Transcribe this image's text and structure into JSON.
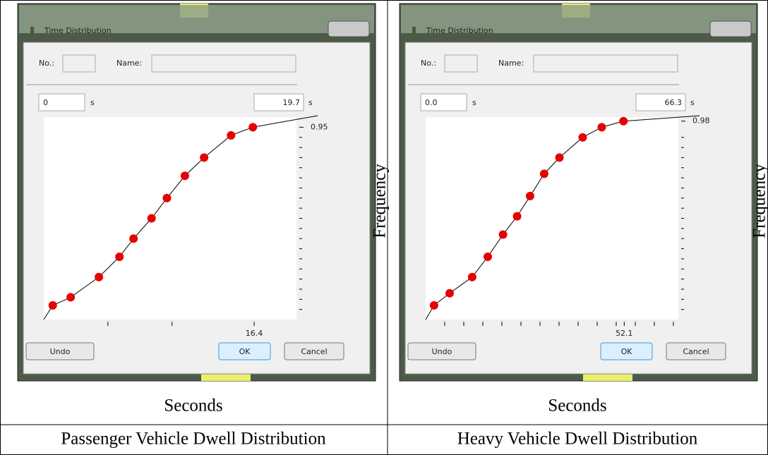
{
  "panels": [
    {
      "dialog": {
        "title": "Time Distribution",
        "no_label": "No.:",
        "name_label": "Name:",
        "min_field": "0",
        "min_unit": "s",
        "max_field": "19.7",
        "max_unit": "s",
        "buttons": [
          "Undo",
          "OK",
          "Cancel"
        ]
      },
      "chart_data": {
        "type": "line",
        "x": [
          0.7,
          2.1,
          4.3,
          5.9,
          7.0,
          8.4,
          9.6,
          11.0,
          12.5,
          14.6,
          16.3
        ],
        "values": [
          0.07,
          0.11,
          0.21,
          0.31,
          0.4,
          0.5,
          0.6,
          0.71,
          0.8,
          0.91,
          0.95
        ],
        "xlim": [
          0,
          19.7
        ],
        "ylim": [
          0,
          1
        ],
        "xticks": [
          {
            "value": 16.4,
            "label": "16.4"
          }
        ],
        "yticks": [
          0.95
        ],
        "minor_xticks": [
          5,
          10
        ],
        "minor_yticks": [
          0.05,
          0.1,
          0.15,
          0.2,
          0.25,
          0.3,
          0.35,
          0.4,
          0.45,
          0.5,
          0.55,
          0.6,
          0.65,
          0.7,
          0.75,
          0.8,
          0.85,
          0.9
        ],
        "color": "#000000",
        "marker_color": "#e60000",
        "xlabel": "Seconds",
        "ylabel": "Frequency"
      },
      "caption": "Passenger Vehicle Dwell Distribution"
    },
    {
      "dialog": {
        "title": "Time Distribution",
        "no_label": "No.:",
        "name_label": "Name:",
        "min_field": "0.0",
        "min_unit": "s",
        "max_field": "66.3",
        "max_unit": "s",
        "buttons": [
          "Undo",
          "OK",
          "Cancel"
        ]
      },
      "chart_data": {
        "type": "line",
        "x": [
          2.2,
          6.3,
          12.2,
          16.3,
          20.3,
          24.0,
          27.4,
          31.1,
          35.1,
          41.2,
          46.2,
          51.9
        ],
        "values": [
          0.07,
          0.13,
          0.21,
          0.31,
          0.42,
          0.51,
          0.61,
          0.72,
          0.8,
          0.9,
          0.95,
          0.98
        ],
        "xlim": [
          0,
          66.3
        ],
        "ylim": [
          0,
          1
        ],
        "xticks": [
          {
            "value": 52.1,
            "label": "52.1"
          }
        ],
        "yticks": [
          0.98
        ],
        "minor_xticks": [
          5,
          10,
          15,
          20,
          25,
          30,
          35,
          40,
          45,
          50,
          55,
          60,
          65
        ],
        "minor_yticks": [
          0.05,
          0.1,
          0.15,
          0.2,
          0.25,
          0.3,
          0.35,
          0.4,
          0.45,
          0.5,
          0.55,
          0.6,
          0.65,
          0.7,
          0.75,
          0.8,
          0.85,
          0.9
        ],
        "color": "#000000",
        "marker_color": "#e60000",
        "xlabel": "Seconds",
        "ylabel": "Frequency"
      },
      "caption": "Heavy Vehicle Dwell Distribution"
    }
  ]
}
